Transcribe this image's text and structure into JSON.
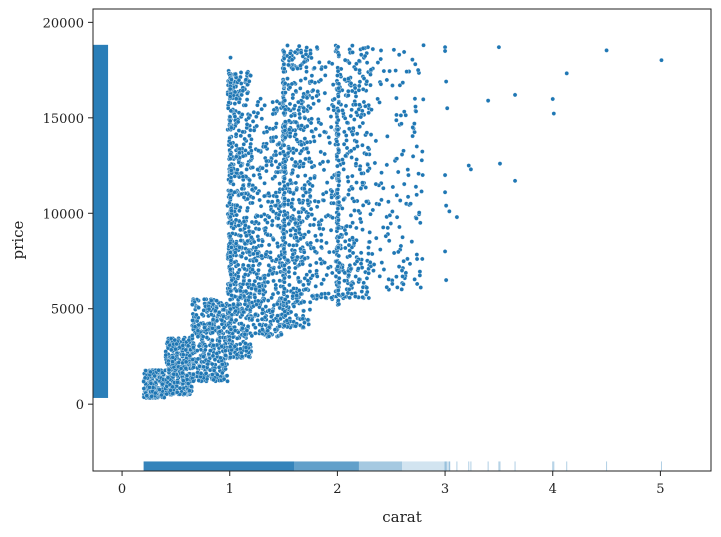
{
  "chart_data": {
    "type": "scatter",
    "title": "",
    "xlabel": "carat",
    "ylabel": "price",
    "xlim": [
      -0.27,
      5.47
    ],
    "ylim": [
      -3500,
      20700
    ],
    "x_ticks": [
      0,
      1,
      2,
      3,
      4,
      5
    ],
    "y_ticks": [
      0,
      5000,
      10000,
      15000,
      20000
    ],
    "x_tick_labels": [
      "0",
      "1",
      "2",
      "3",
      "4",
      "5"
    ],
    "y_tick_labels": [
      "0",
      "5000",
      "10000",
      "15000",
      "20000"
    ],
    "grid": false,
    "legend": "none",
    "marker_color": "#1f77b4",
    "marker_edge_color": "#ffffff",
    "rug": {
      "x_axis": "carat values drawn as ticks along the bottom",
      "y_axis": "price values drawn as ticks along the left",
      "x_range": [
        0.2,
        5.01
      ],
      "y_range": [
        326,
        18823
      ]
    },
    "clusters": [
      {
        "x_min": 0.2,
        "x_max": 0.4,
        "price_min": 326,
        "price_max": 1800,
        "n": 220
      },
      {
        "x_min": 0.4,
        "x_max": 0.65,
        "price_min": 500,
        "price_max": 3500,
        "n": 320
      },
      {
        "x_min": 0.65,
        "x_max": 0.98,
        "price_min": 1200,
        "price_max": 5500,
        "n": 380
      },
      {
        "x_min": 0.98,
        "x_max": 1.2,
        "price_min": 2400,
        "price_max": 17500,
        "n": 600
      },
      {
        "x_min": 1.2,
        "x_max": 1.49,
        "price_min": 3500,
        "price_max": 16000,
        "n": 380
      },
      {
        "x_min": 1.49,
        "x_max": 1.75,
        "price_min": 4000,
        "price_max": 18800,
        "n": 450
      },
      {
        "x_min": 1.75,
        "x_max": 1.99,
        "price_min": 5500,
        "price_max": 18800,
        "n": 160
      },
      {
        "x_min": 1.99,
        "x_max": 2.3,
        "price_min": 5500,
        "price_max": 18800,
        "n": 300
      },
      {
        "x_min": 2.3,
        "x_max": 2.8,
        "price_min": 6000,
        "price_max": 18800,
        "n": 140
      }
    ],
    "outliers": [
      {
        "x": 3.0,
        "y": 18700
      },
      {
        "x": 3.0,
        "y": 18500
      },
      {
        "x": 3.01,
        "y": 16900
      },
      {
        "x": 3.02,
        "y": 15500
      },
      {
        "x": 3.0,
        "y": 12000
      },
      {
        "x": 3.0,
        "y": 11100
      },
      {
        "x": 3.01,
        "y": 10400
      },
      {
        "x": 3.04,
        "y": 10100
      },
      {
        "x": 3.11,
        "y": 9800
      },
      {
        "x": 3.0,
        "y": 8000
      },
      {
        "x": 3.01,
        "y": 6500
      },
      {
        "x": 3.22,
        "y": 12500
      },
      {
        "x": 3.24,
        "y": 12300
      },
      {
        "x": 3.4,
        "y": 15900
      },
      {
        "x": 3.5,
        "y": 18700
      },
      {
        "x": 3.51,
        "y": 12600
      },
      {
        "x": 3.65,
        "y": 16200
      },
      {
        "x": 3.65,
        "y": 11700
      },
      {
        "x": 4.0,
        "y": 15984
      },
      {
        "x": 4.01,
        "y": 15223
      },
      {
        "x": 4.13,
        "y": 17329
      },
      {
        "x": 4.5,
        "y": 18531
      },
      {
        "x": 5.01,
        "y": 18018
      },
      {
        "x": 2.8,
        "y": 18800
      },
      {
        "x": 2.75,
        "y": 17500
      },
      {
        "x": 2.72,
        "y": 16000
      },
      {
        "x": 2.7,
        "y": 14500
      },
      {
        "x": 2.66,
        "y": 12000
      },
      {
        "x": 2.68,
        "y": 10500
      },
      {
        "x": 2.77,
        "y": 9500
      },
      {
        "x": 2.6,
        "y": 7000
      },
      {
        "x": 2.51,
        "y": 6300
      },
      {
        "x": 2.45,
        "y": 8800
      },
      {
        "x": 2.3,
        "y": 9000
      }
    ]
  }
}
